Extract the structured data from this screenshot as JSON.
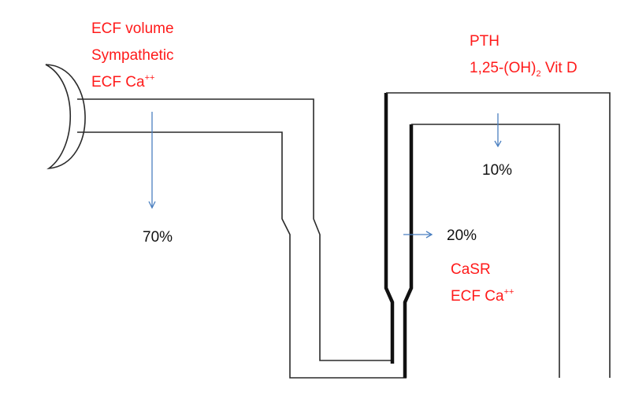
{
  "factors_proximal": {
    "line1": "ECF volume",
    "line2": "Sympathetic",
    "line3_base": "ECF Ca",
    "line3_sup": "++"
  },
  "factors_distal": {
    "line1": "PTH",
    "line2_pre": "1,25-(OH)",
    "line2_sub": "2",
    "line2_post": " Vit D"
  },
  "factors_loop": {
    "line1": "CaSR",
    "line2_base": "ECF Ca",
    "line2_sup": "++"
  },
  "percentages": {
    "proximal": "70%",
    "loop": "20%",
    "distal": "10%"
  },
  "colors": {
    "label_red": "#ff1a1a",
    "arrow_blue": "#4a7fc0",
    "tubule_outline": "#2a2a2a"
  }
}
